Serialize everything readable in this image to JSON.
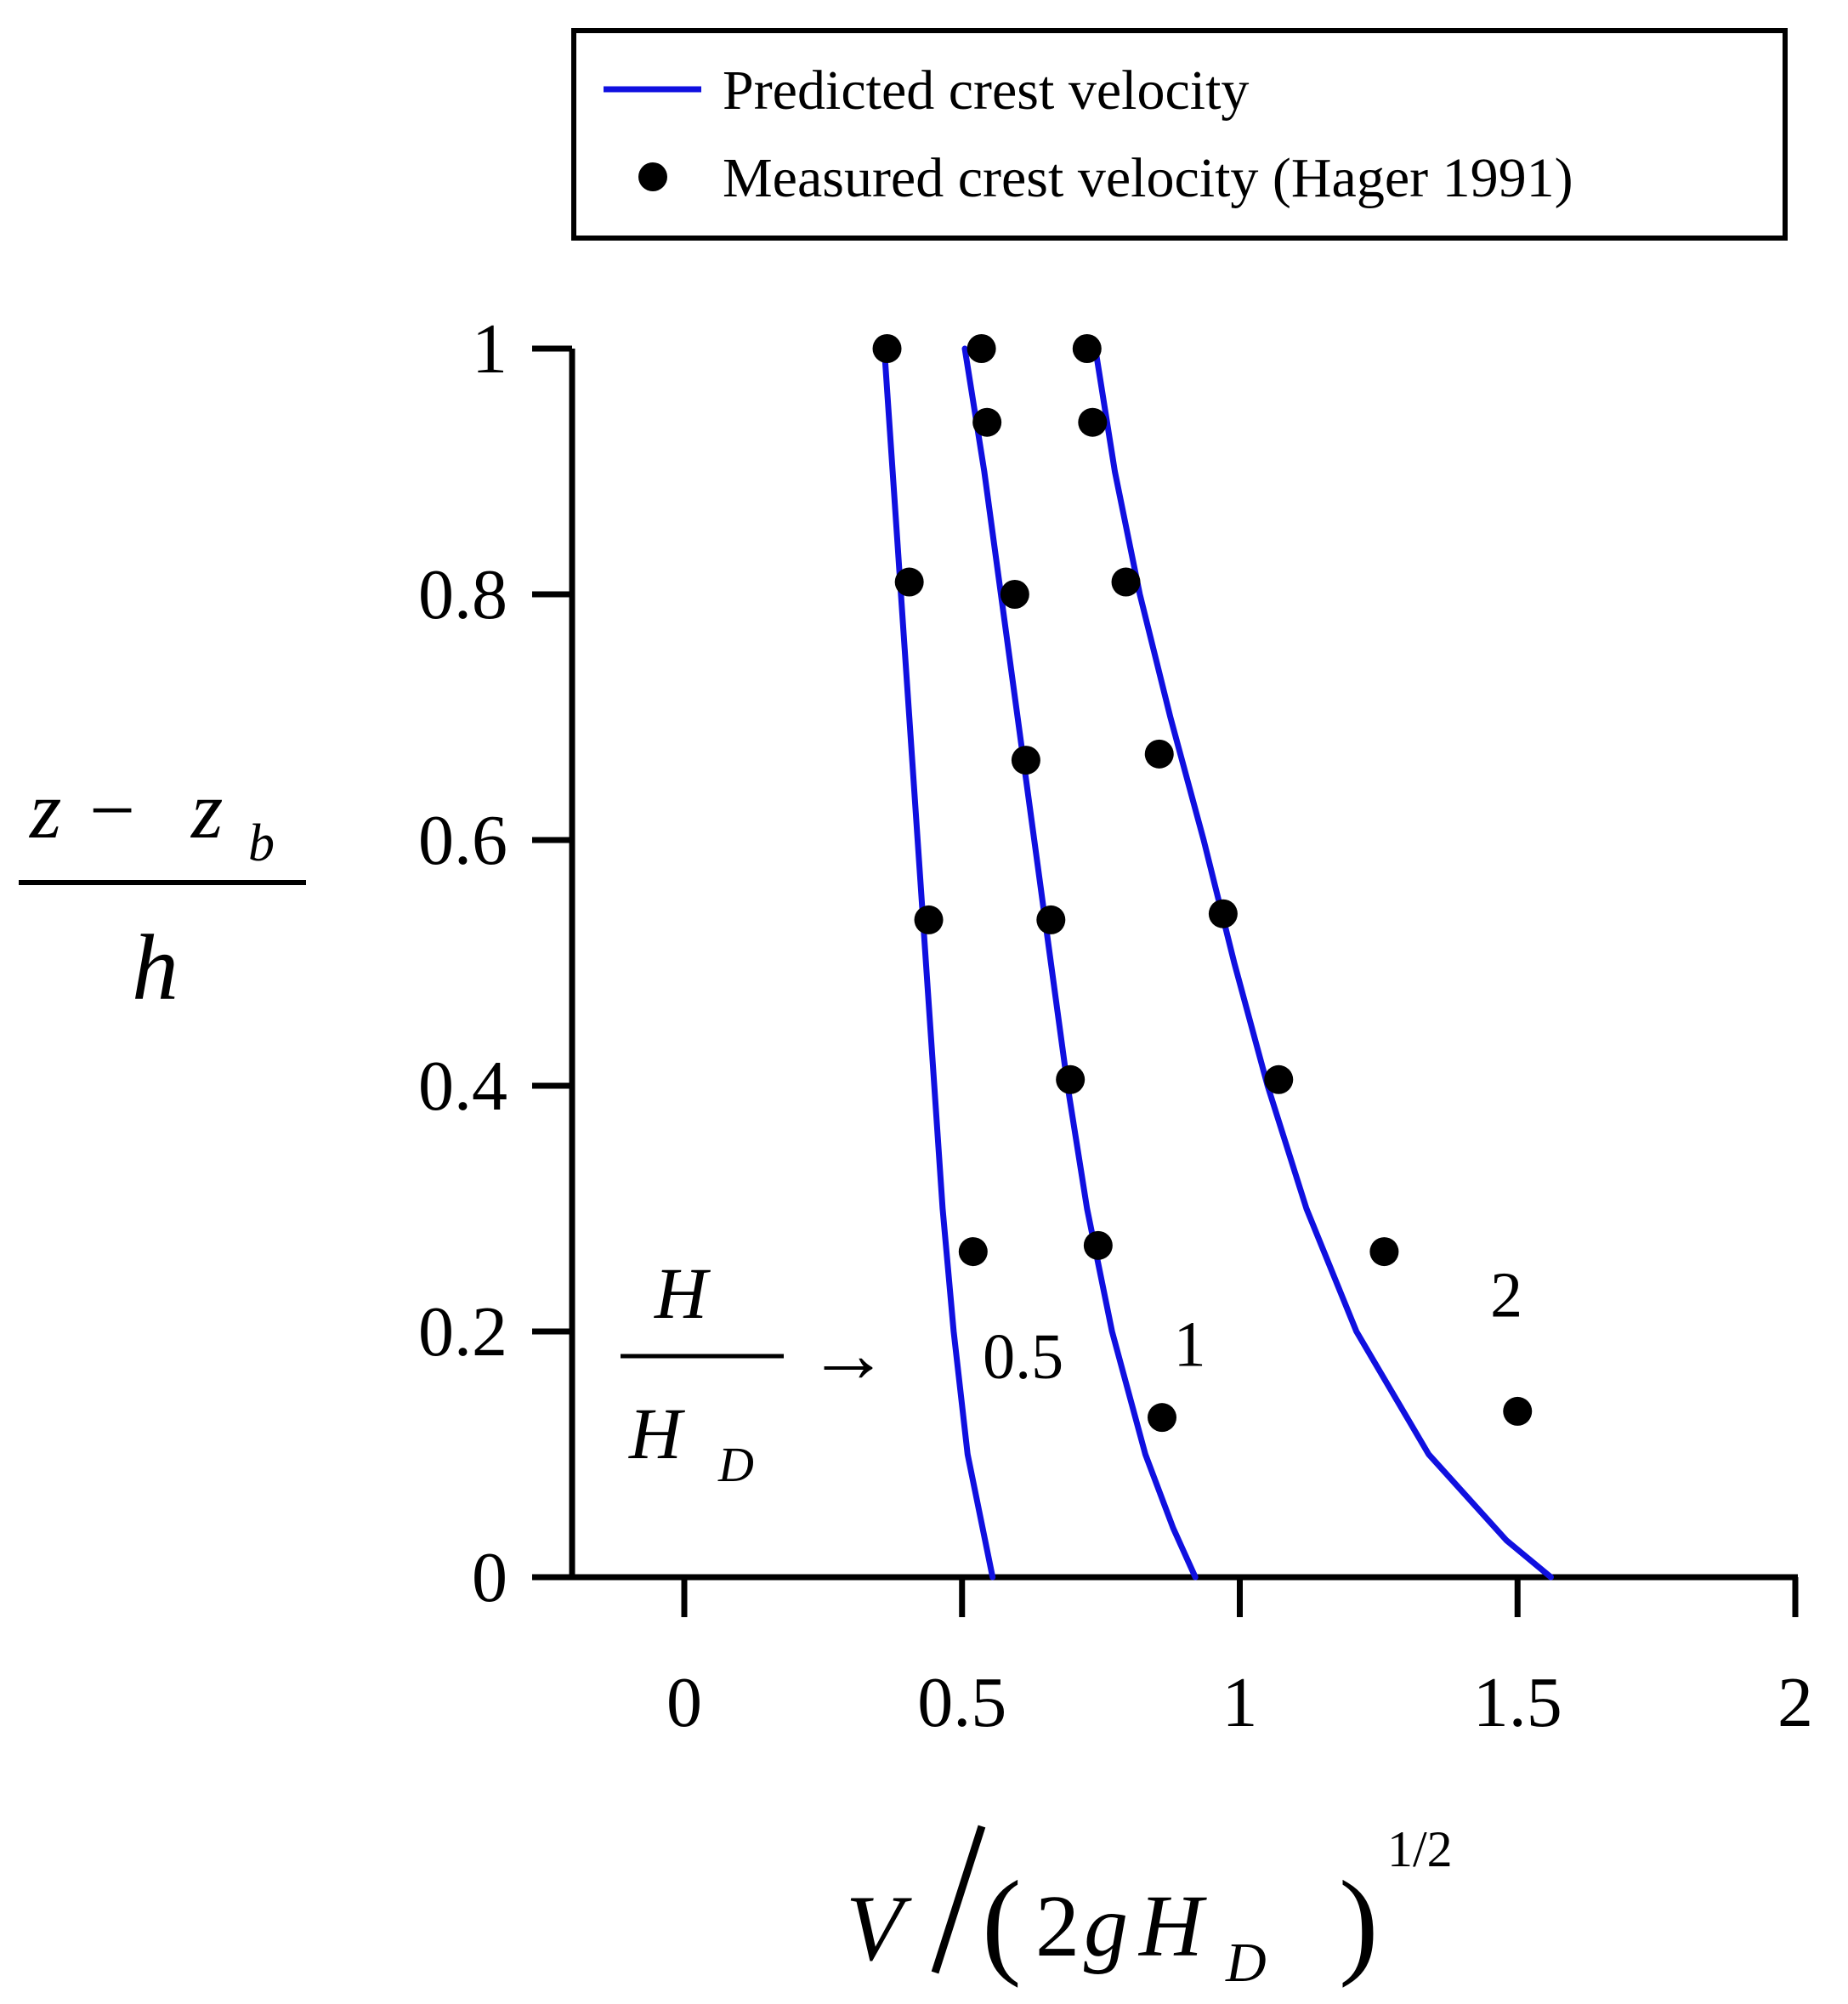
{
  "chart_data": {
    "type": "line",
    "title": "",
    "xlabel": {
      "V": "V",
      "open_paren": "(",
      "two": "2",
      "g": "g",
      "H": "H",
      "D": "D",
      "close_paren": ")",
      "exponent": "1/2"
    },
    "ylabel": {
      "numerator_z": "z",
      "minus": "−",
      "numerator_zb": "z",
      "subscript_b": "b",
      "denominator": "h"
    },
    "annotation": {
      "numerator": "H",
      "denominator_H": "H",
      "denominator_D": "D",
      "arrow": "→"
    },
    "xlim": [
      -0.25,
      2.0
    ],
    "ylim": [
      0,
      1
    ],
    "x_ticks": [
      {
        "value": 0,
        "label": "0"
      },
      {
        "value": 0.5,
        "label": "0.5"
      },
      {
        "value": 1,
        "label": "1"
      },
      {
        "value": 1.5,
        "label": "1.5"
      },
      {
        "value": 2,
        "label": "2"
      }
    ],
    "y_ticks": [
      {
        "value": 0,
        "label": "0"
      },
      {
        "value": 0.2,
        "label": "0.2"
      },
      {
        "value": 0.4,
        "label": "0.4"
      },
      {
        "value": 0.6,
        "label": "0.6"
      },
      {
        "value": 0.8,
        "label": "0.8"
      },
      {
        "value": 1,
        "label": "1"
      }
    ],
    "grid": false,
    "legend": {
      "placement": "top",
      "entries": [
        {
          "label": "Predicted crest velocity",
          "kind": "line",
          "color": "#1010e0"
        },
        {
          "label": "Measured crest velocity (Hager 1991)",
          "kind": "marker",
          "color": "#000000"
        }
      ]
    },
    "series": [
      {
        "label": "0.5",
        "kind": "predicted",
        "color": "#1010e0",
        "points": [
          [
            0.36,
            1.0
          ],
          [
            0.375,
            0.9
          ],
          [
            0.39,
            0.8
          ],
          [
            0.405,
            0.7
          ],
          [
            0.42,
            0.6
          ],
          [
            0.435,
            0.5
          ],
          [
            0.45,
            0.4
          ],
          [
            0.465,
            0.3
          ],
          [
            0.485,
            0.2
          ],
          [
            0.51,
            0.1
          ],
          [
            0.555,
            0.0
          ]
        ]
      },
      {
        "label": "1",
        "kind": "predicted",
        "color": "#1010e0",
        "points": [
          [
            0.505,
            1.0
          ],
          [
            0.54,
            0.9
          ],
          [
            0.57,
            0.8
          ],
          [
            0.6,
            0.7
          ],
          [
            0.63,
            0.6
          ],
          [
            0.66,
            0.5
          ],
          [
            0.69,
            0.4
          ],
          [
            0.725,
            0.3
          ],
          [
            0.77,
            0.2
          ],
          [
            0.83,
            0.1
          ],
          [
            0.88,
            0.04
          ],
          [
            0.92,
            0.0
          ]
        ]
      },
      {
        "label": "2",
        "kind": "predicted",
        "color": "#1010e0",
        "points": [
          [
            0.74,
            1.0
          ],
          [
            0.775,
            0.9
          ],
          [
            0.82,
            0.8
          ],
          [
            0.875,
            0.7
          ],
          [
            0.935,
            0.6
          ],
          [
            0.99,
            0.5
          ],
          [
            1.05,
            0.4
          ],
          [
            1.12,
            0.3
          ],
          [
            1.21,
            0.2
          ],
          [
            1.34,
            0.1
          ],
          [
            1.48,
            0.03
          ],
          [
            1.56,
            0.0
          ]
        ]
      },
      {
        "label": "0.5",
        "kind": "measured",
        "color": "#000000",
        "points": [
          [
            0.365,
            1.0
          ],
          [
            0.405,
            0.81
          ],
          [
            0.44,
            0.535
          ],
          [
            0.52,
            0.265
          ]
        ]
      },
      {
        "label": "1",
        "kind": "measured",
        "color": "#000000",
        "points": [
          [
            0.535,
            1.0
          ],
          [
            0.545,
            0.94
          ],
          [
            0.595,
            0.8
          ],
          [
            0.615,
            0.665
          ],
          [
            0.66,
            0.535
          ],
          [
            0.695,
            0.405
          ],
          [
            0.745,
            0.27
          ],
          [
            0.86,
            0.13
          ]
        ]
      },
      {
        "label": "2",
        "kind": "measured",
        "color": "#000000",
        "points": [
          [
            0.725,
            1.0
          ],
          [
            0.735,
            0.94
          ],
          [
            0.795,
            0.81
          ],
          [
            0.855,
            0.67
          ],
          [
            0.97,
            0.54
          ],
          [
            1.07,
            0.405
          ],
          [
            1.26,
            0.265
          ],
          [
            1.5,
            0.135
          ]
        ]
      }
    ],
    "series_labels": [
      {
        "text": "0.5",
        "x": 0.61,
        "y": 0.18
      },
      {
        "text": "1",
        "x": 0.91,
        "y": 0.19
      },
      {
        "text": "2",
        "x": 1.48,
        "y": 0.23
      }
    ]
  }
}
